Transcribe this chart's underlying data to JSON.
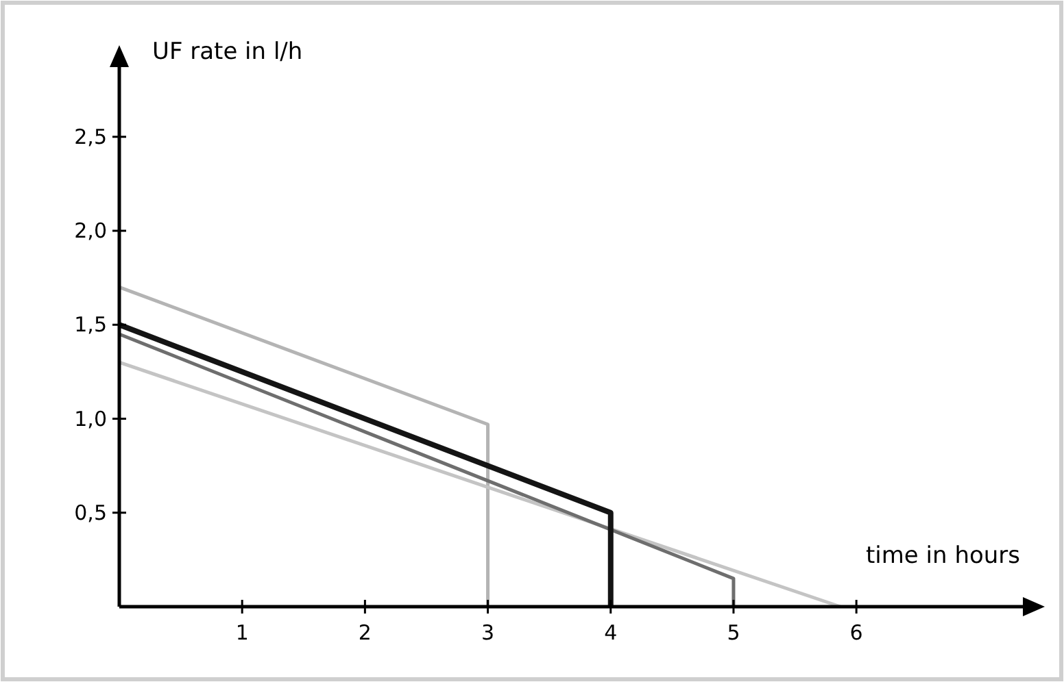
{
  "chart_data": {
    "type": "line",
    "xlabel": "time in hours",
    "ylabel": "UF rate in l/h",
    "xlim": [
      0,
      7.4
    ],
    "ylim": [
      0,
      2.9
    ],
    "xticks": [
      1,
      2,
      3,
      4,
      5,
      6
    ],
    "yticks": [
      {
        "value": 0.5,
        "label": "0,5"
      },
      {
        "value": 1,
        "label": "1,0"
      },
      {
        "value": 1.5,
        "label": "1,5"
      },
      {
        "value": 2,
        "label": "2,0"
      },
      {
        "value": 2.5,
        "label": "2,5"
      }
    ],
    "grid": false,
    "line_style": "solid",
    "series": [
      {
        "color": "#b4b4b4",
        "x": [
          0,
          3,
          3
        ],
        "values": [
          1.7,
          0.97,
          0
        ]
      },
      {
        "color": "#c4c4c4",
        "x": [
          0,
          5.87
        ],
        "values": [
          1.3,
          0
        ]
      },
      {
        "color": "#6e6e6e",
        "x": [
          0,
          5,
          5
        ],
        "values": [
          1.45,
          0.15,
          0
        ]
      },
      {
        "color": "#141414",
        "x": [
          0,
          4,
          4
        ],
        "values": [
          1.5,
          0.5,
          0
        ]
      }
    ]
  }
}
